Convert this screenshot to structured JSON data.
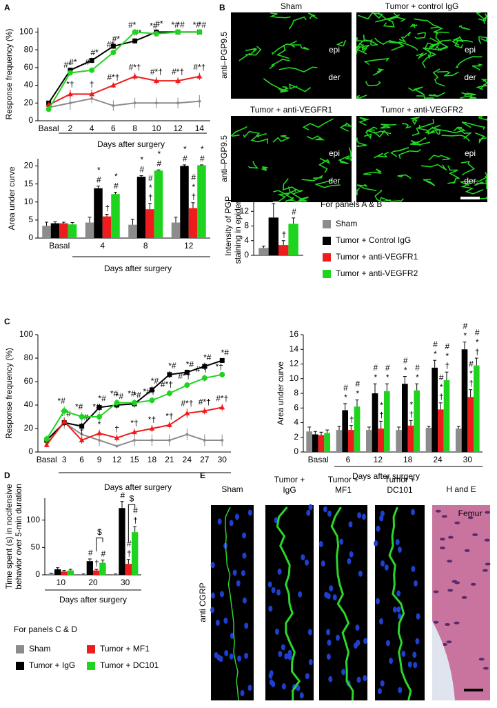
{
  "panels": [
    "A",
    "B",
    "C",
    "D",
    "E"
  ],
  "chart_data": [
    {
      "type": "line",
      "ylabel": "Response frequency (%)",
      "xlabel": "Days after surgery",
      "categories": [
        "Basal",
        "2",
        "4",
        "6",
        "8",
        "10",
        "12",
        "14"
      ],
      "ylim": [
        0,
        105
      ],
      "yticks": [
        0,
        20,
        40,
        60,
        80,
        100
      ],
      "series": [
        {
          "color": "#8c8c8c",
          "values": [
            15,
            20,
            25,
            17,
            20,
            20,
            20,
            22
          ],
          "errors": [
            3,
            8,
            5,
            6,
            6,
            6,
            6,
            7
          ]
        },
        {
          "color": "#000000",
          "values": [
            20,
            57,
            68,
            84,
            90,
            100,
            100,
            100
          ],
          "errors": [
            2,
            3,
            3,
            2,
            3,
            3,
            2,
            2
          ],
          "significance": [
            null,
            "#*",
            "#*",
            "#*",
            "#*",
            "#*",
            "*#",
            "*#"
          ]
        },
        {
          "color": "#ee1c1c",
          "values": [
            18,
            30,
            30,
            40,
            50,
            45,
            45,
            50
          ],
          "errors": [
            2,
            5,
            5,
            3,
            4,
            4,
            4,
            4
          ],
          "significance": [
            null,
            "*†",
            "†",
            "#*†",
            "#*†",
            "#*†",
            "#*†",
            "#*†"
          ]
        },
        {
          "color": "#1fd41f",
          "values": [
            13,
            54,
            57,
            77,
            100,
            98,
            100,
            100
          ],
          "errors": [
            2,
            3,
            3,
            3,
            2,
            3,
            2,
            2
          ],
          "significance": [
            null,
            "#*",
            "#*",
            "#*",
            "#*",
            "*#",
            "*#",
            "*#"
          ]
        }
      ]
    },
    {
      "type": "bar",
      "ylabel": "Area under curve",
      "xlabel": "Days after surgery",
      "categories": [
        "Basal",
        "4",
        "8",
        "12"
      ],
      "ylim": [
        0,
        22
      ],
      "yticks": [
        0,
        5,
        10,
        15,
        20
      ],
      "series": [
        {
          "color": "#8c8c8c",
          "values": [
            3.4,
            4.3,
            3.7,
            4.3
          ],
          "errors": [
            1,
            1.5,
            1.5,
            1.5
          ]
        },
        {
          "color": "#000000",
          "values": [
            4.1,
            13.8,
            17,
            20
          ],
          "errors": [
            0.4,
            0.6,
            0.3,
            0.3
          ],
          "significance": [
            null,
            "*#",
            "*#",
            "*#"
          ]
        },
        {
          "color": "#ee1c1c",
          "values": [
            4.1,
            6,
            8,
            8.3
          ],
          "errors": [
            0.3,
            0.6,
            1.6,
            1.5
          ],
          "significance": [
            null,
            "†",
            "#*†",
            "#*†"
          ]
        },
        {
          "color": "#1fd41f",
          "values": [
            3.8,
            12.2,
            18.7,
            20.2
          ],
          "errors": [
            0.5,
            0.5,
            0.2,
            0.1
          ],
          "significance": [
            null,
            "*#",
            "*#",
            "*#"
          ]
        }
      ]
    },
    {
      "type": "bar",
      "ylabel": [
        "Intensity of PGP",
        "staining in epidermis"
      ],
      "legend_title": "For panels A & B",
      "categories": [
        null
      ],
      "ylim": [
        0,
        16
      ],
      "yticks": [
        0,
        4,
        8,
        12
      ],
      "series": [
        {
          "name": "Sham",
          "color": "#8c8c8c",
          "values": [
            2
          ],
          "errors": [
            0.5
          ]
        },
        {
          "name": "Tumor + Control IgG",
          "color": "#000000",
          "values": [
            10.3
          ],
          "errors": [
            3.8
          ],
          "significance": [
            "#"
          ]
        },
        {
          "name": "Tumor + anti-VEGFR1",
          "color": "#ee1c1c",
          "values": [
            2.8
          ],
          "errors": [
            1.2
          ],
          "significance": [
            "†"
          ]
        },
        {
          "name": "Tumor + anti-VEGFR2",
          "color": "#1fd41f",
          "values": [
            8.6
          ],
          "errors": [
            1.6
          ],
          "significance": [
            "#"
          ]
        }
      ]
    },
    {
      "type": "line",
      "ylabel": "Response frequency (%)",
      "xlabel": "Days after surgery",
      "categories": [
        "Basal",
        "3",
        "6",
        "9",
        "12",
        "15",
        "18",
        "21",
        "24",
        "27",
        "30"
      ],
      "ylim": [
        0,
        100
      ],
      "yticks": [
        0,
        20,
        40,
        60,
        80,
        100
      ],
      "series": [
        {
          "color": "#8c8c8c",
          "values": [
            7,
            25,
            15,
            10,
            5,
            10,
            10,
            10,
            15,
            10,
            10
          ],
          "errors": [
            3,
            5,
            5,
            5,
            1,
            5,
            5,
            5,
            5,
            5,
            5
          ]
        },
        {
          "color": "#000000",
          "values": [
            10,
            25,
            22,
            38,
            40,
            41,
            53,
            66,
            68,
            73,
            78
          ],
          "errors": [
            3,
            3,
            3,
            3,
            3,
            3,
            3,
            3,
            2,
            3,
            2
          ],
          "significance": [
            null,
            "*#",
            "*#",
            "*#",
            "*#",
            "*#",
            "*#",
            "*#",
            "*#",
            "*#",
            "*#"
          ]
        },
        {
          "color": "#ee1c1c",
          "values": [
            6,
            26,
            10,
            16,
            12,
            17,
            20,
            23,
            33,
            35,
            38
          ],
          "errors": [
            2,
            3,
            3,
            3,
            3,
            3,
            3,
            3,
            4,
            3,
            3
          ],
          "significance": [
            null,
            "†*",
            "†",
            "*",
            "†",
            "*†",
            "*†",
            "*†",
            "#*†",
            "#*†",
            "#*†"
          ]
        },
        {
          "color": "#1fd41f",
          "values": [
            11,
            35,
            30,
            30,
            42,
            42,
            44,
            50,
            57,
            63,
            66
          ],
          "errors": [
            3,
            4,
            4,
            4,
            3,
            3,
            3,
            3,
            3,
            3,
            2
          ],
          "significance": [
            null,
            "*#",
            "*#",
            "*#",
            "*#",
            "*#",
            "*#†",
            "#*†",
            "#*†",
            "#*†",
            "*†"
          ]
        }
      ]
    },
    {
      "type": "bar",
      "ylabel": "Area under curve",
      "xlabel": "Days after surgery",
      "categories": [
        "Basal",
        "6",
        "12",
        "18",
        "24",
        "30"
      ],
      "ylim": [
        0,
        16
      ],
      "yticks": [
        0,
        2,
        4,
        6,
        8,
        10,
        12,
        14,
        16
      ],
      "series": [
        {
          "color": "#8c8c8c",
          "values": [
            2.8,
            3,
            3,
            3,
            3.3,
            3.2
          ],
          "errors": [
            0.6,
            0.5,
            0.4,
            0.4,
            0.2,
            0.3
          ]
        },
        {
          "color": "#000000",
          "values": [
            2.4,
            5.7,
            8,
            9.3,
            11.5,
            14
          ],
          "errors": [
            0.4,
            0.9,
            1.3,
            1,
            1,
            1
          ],
          "significance": [
            null,
            "#*",
            "#*",
            "#*",
            "#*",
            "#*"
          ]
        },
        {
          "color": "#ee1c1c",
          "values": [
            2.3,
            3,
            3.2,
            3.6,
            5.8,
            7.5
          ],
          "errors": [
            0.4,
            0.6,
            1,
            0.7,
            0.9,
            1
          ],
          "significance": [
            null,
            "†",
            "*†",
            "*†",
            "#*†",
            "#*†"
          ]
        },
        {
          "color": "#1fd41f",
          "values": [
            2.6,
            6.2,
            8.3,
            8.4,
            9.8,
            11.8
          ],
          "errors": [
            0.4,
            0.9,
            1,
            0.9,
            1.1,
            1
          ],
          "significance": [
            null,
            "#*",
            "#*",
            "#*",
            "#*†",
            "#*†"
          ]
        }
      ]
    },
    {
      "type": "bar",
      "ylabel": [
        "Time spent (s) in nocifensive",
        "behavior over 5-min duration"
      ],
      "xlabel": "Days after surgery",
      "legend_title": "For panels C & D",
      "categories": [
        "10",
        "20",
        "30"
      ],
      "ylim": [
        0,
        140
      ],
      "yticks": [
        0,
        50,
        100
      ],
      "bracket_labels": [
        null,
        "$",
        "$"
      ],
      "series": [
        {
          "name": "Sham",
          "color": "#8c8c8c",
          "values": [
            2,
            1,
            1
          ],
          "errors": [
            1,
            0.5,
            0.5
          ]
        },
        {
          "name": "Tumor + IgG",
          "color": "#000000",
          "values": [
            10,
            25,
            122
          ],
          "errors": [
            3,
            4,
            12
          ],
          "significance": [
            null,
            "#",
            "#"
          ]
        },
        {
          "name": "Tumor + MF1",
          "color": "#ee1c1c",
          "values": [
            6,
            8,
            20
          ],
          "errors": [
            2,
            2,
            8
          ],
          "significance": [
            null,
            "†",
            "#†"
          ]
        },
        {
          "name": "Tumor + DC101",
          "color": "#1fd41f",
          "values": [
            8,
            22,
            78
          ],
          "errors": [
            2,
            5,
            10
          ],
          "significance": [
            null,
            "#",
            "#†"
          ]
        }
      ]
    }
  ],
  "images_b": {
    "row_labels": [
      "anti–PGP9.5",
      "anti–PGP9.5"
    ],
    "panels": [
      {
        "title": "Sham",
        "labels": [
          "epi",
          "der"
        ]
      },
      {
        "title": "Tumor + control IgG",
        "labels": [
          "epi",
          "der"
        ]
      },
      {
        "title": "Tumor + anti-VEGFR1",
        "labels": [
          "epi",
          "der"
        ]
      },
      {
        "title": "Tumor + anti-VEGFR2",
        "labels": [
          "epi",
          "der"
        ]
      }
    ]
  },
  "images_e": {
    "row_label": "anti CGRP",
    "panels": [
      {
        "title": [
          "Sham"
        ]
      },
      {
        "title": [
          "Tumor +",
          "IgG"
        ]
      },
      {
        "title": [
          "Tumor +",
          "MF1"
        ]
      },
      {
        "title": [
          "Tumor +",
          "DC101"
        ]
      },
      {
        "title": [
          "H and E"
        ],
        "label": "Femur"
      }
    ]
  }
}
